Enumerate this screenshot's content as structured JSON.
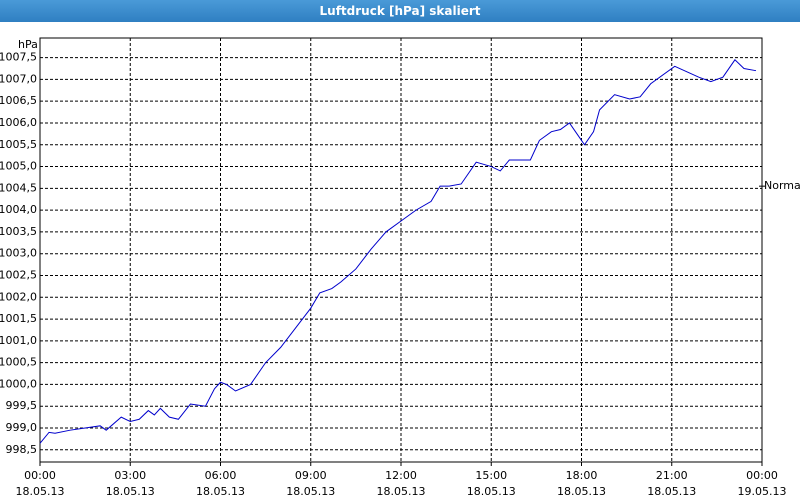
{
  "chart_data": {
    "type": "line",
    "title": "Luftdruck [hPa] skaliert",
    "y_label": "hPa",
    "annotation": "Normal",
    "annotation_value": 1004.55,
    "xlim": [
      0,
      24
    ],
    "ylim": [
      998.22,
      1007.95
    ],
    "xticks": [
      {
        "value": 0,
        "label": "00:00",
        "date": "18.05.13"
      },
      {
        "value": 3,
        "label": "03:00",
        "date": "18.05.13"
      },
      {
        "value": 6,
        "label": "06:00",
        "date": "18.05.13"
      },
      {
        "value": 9,
        "label": "09:00",
        "date": "18.05.13"
      },
      {
        "value": 12,
        "label": "12:00",
        "date": "18.05.13"
      },
      {
        "value": 15,
        "label": "15:00",
        "date": "18.05.13"
      },
      {
        "value": 18,
        "label": "18:00",
        "date": "18.05.13"
      },
      {
        "value": 21,
        "label": "21:00",
        "date": "18.05.13"
      },
      {
        "value": 24,
        "label": "00:00",
        "date": "19.05.13"
      }
    ],
    "yticks": [
      {
        "value": 998.5,
        "label": "998,5"
      },
      {
        "value": 999,
        "label": "999,0"
      },
      {
        "value": 999.5,
        "label": "999,5"
      },
      {
        "value": 1000,
        "label": "1000,0"
      },
      {
        "value": 1000.5,
        "label": "1000,5"
      },
      {
        "value": 1001,
        "label": "1001,0"
      },
      {
        "value": 1001.5,
        "label": "1001,5"
      },
      {
        "value": 1002,
        "label": "1002,0"
      },
      {
        "value": 1002.5,
        "label": "1002,5"
      },
      {
        "value": 1003,
        "label": "1003,0"
      },
      {
        "value": 1003.5,
        "label": "1003,5"
      },
      {
        "value": 1004,
        "label": "1004,0"
      },
      {
        "value": 1004.5,
        "label": "1004,5"
      },
      {
        "value": 1005,
        "label": "1005,0"
      },
      {
        "value": 1005.5,
        "label": "1005,5"
      },
      {
        "value": 1006,
        "label": "1006,0"
      },
      {
        "value": 1006.5,
        "label": "1006,5"
      },
      {
        "value": 1007,
        "label": "1007,0"
      },
      {
        "value": 1007.5,
        "label": "1007,5"
      }
    ],
    "grid": true,
    "series": [
      {
        "color": "#0000cc",
        "x": [
          0,
          0.3,
          0.5,
          1,
          1.5,
          2,
          2.2,
          2.7,
          3,
          3.3,
          3.6,
          3.8,
          4,
          4.3,
          4.6,
          5,
          5.5,
          5.8,
          6,
          6.2,
          6.5,
          7,
          7.5,
          8,
          8.5,
          9,
          9.3,
          9.7,
          10,
          10.5,
          11,
          11.5,
          12,
          12.5,
          13,
          13.3,
          13.6,
          14,
          14.5,
          15,
          15.3,
          15.6,
          16,
          16.3,
          16.6,
          17,
          17.3,
          17.6,
          17.8,
          18.1,
          18.4,
          18.6,
          19.1,
          19.6,
          19.95,
          20.3,
          21.1,
          21.9,
          22.3,
          22.7,
          23.1,
          23.4,
          23.8
        ],
        "values": [
          998.65,
          998.9,
          998.88,
          998.95,
          999.0,
          999.05,
          998.95,
          999.25,
          999.15,
          999.2,
          999.4,
          999.3,
          999.45,
          999.25,
          999.2,
          999.55,
          999.5,
          999.9,
          1000.05,
          1000.0,
          999.85,
          1000.0,
          1000.5,
          1000.85,
          1001.3,
          1001.75,
          1002.1,
          1002.2,
          1002.35,
          1002.65,
          1003.1,
          1003.5,
          1003.75,
          1004.0,
          1004.2,
          1004.55,
          1004.55,
          1004.6,
          1005.1,
          1005.0,
          1004.9,
          1005.15,
          1005.15,
          1005.15,
          1005.6,
          1005.8,
          1005.85,
          1006.0,
          1005.8,
          1005.5,
          1005.8,
          1006.3,
          1006.65,
          1006.55,
          1006.6,
          1006.9,
          1007.3,
          1007.05,
          1006.95,
          1007.05,
          1007.45,
          1007.25,
          1007.2
        ]
      }
    ]
  }
}
